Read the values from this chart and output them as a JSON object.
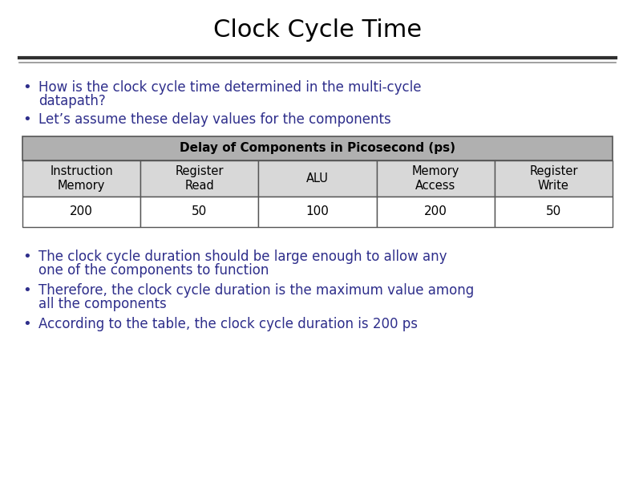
{
  "title": "Clock Cycle Time",
  "title_color": "#000000",
  "title_fontsize": 22,
  "bullet_color": "#2E2E8B",
  "bullet_fontsize": 12,
  "bullets_top": [
    "How is the clock cycle time determined in the multi-cycle\n  datapath?",
    "Let’s assume these delay values for the components"
  ],
  "bullets_bottom": [
    "The clock cycle duration should be large enough to allow any\n  one of the components to function",
    "Therefore, the clock cycle duration is the maximum value among\n  all the components",
    "According to the table, the clock cycle duration is 200 ps"
  ],
  "table_header": "Delay of Components in Picosecond (ps)",
  "table_col_headers": [
    "Instruction\nMemory",
    "Register\nRead",
    "ALU",
    "Memory\nAccess",
    "Register\nWrite"
  ],
  "table_values": [
    "200",
    "50",
    "100",
    "200",
    "50"
  ],
  "table_header_bg": "#B0B0B0",
  "table_col_header_bg": "#D8D8D8",
  "table_value_bg": "#FFFFFF",
  "table_border_color": "#555555",
  "background_color": "#FFFFFF",
  "separator_color_dark": "#303030",
  "separator_color_light": "#909090"
}
